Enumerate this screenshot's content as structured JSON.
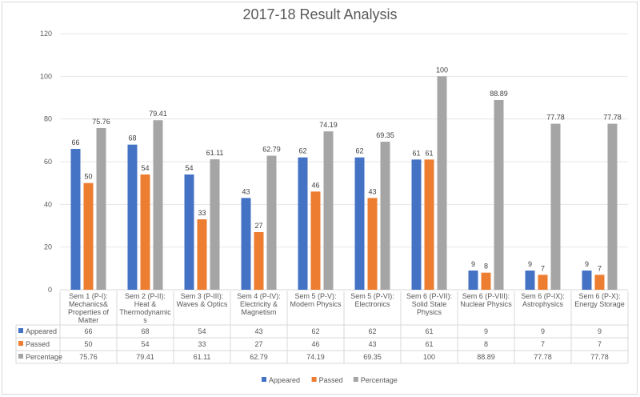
{
  "chart_data": {
    "type": "bar",
    "title": "2017-18 Result Analysis",
    "xlabel": "",
    "ylabel": "",
    "ylim": [
      0,
      120
    ],
    "yticks": [
      0,
      20,
      40,
      60,
      80,
      100,
      120
    ],
    "grid": true,
    "legend": "bottom",
    "categories": [
      "Sem 1 (P-I): Mechanics& Properties of Matter",
      "Sem 2 (P-II): Heat & Thermodynamics",
      "Sem 3 (P-III): Waves & Optics",
      "Sem 4 (P-IV): Electricity & Magnetism",
      "Sem 5 (P-V): Modern Physics",
      "Sem 5 (P-VI): Electronics",
      "Sem 6 (P-VII): Solid State Physics",
      "Sem 6 (P-VIII): Nuclear Physics",
      "Sem 6 (P-IX): Astrophysics",
      "Sem 6 (P-X): Energy Storage"
    ],
    "series": [
      {
        "name": "Appeared",
        "color": "#4472c4",
        "values": [
          "66",
          "68",
          "54",
          "43",
          "62",
          "62",
          "61",
          "9",
          "9",
          "9"
        ]
      },
      {
        "name": "Passed",
        "color": "#ed7d31",
        "values": [
          "50",
          "54",
          "33",
          "27",
          "46",
          "43",
          "61",
          "8",
          "7",
          "7"
        ]
      },
      {
        "name": "Percentage",
        "color": "#a5a5a5",
        "values": [
          "75.76",
          "79.41",
          "61.11",
          "62.79",
          "74.19",
          "69.35",
          "100",
          "88.89",
          "77.78",
          "77.78"
        ]
      }
    ]
  }
}
